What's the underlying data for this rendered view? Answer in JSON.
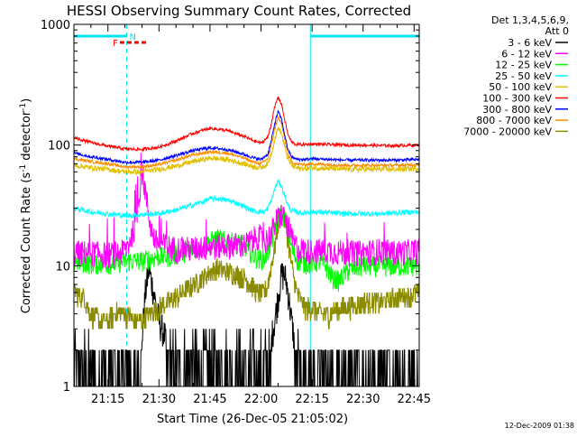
{
  "chart_data": {
    "type": "line",
    "title": "HESSI Observing Summary Count Rates, Corrected",
    "ylabel_prefix": "Corrected Count Rate (s",
    "ylabel_sup1": "-1",
    "ylabel_middle": " detector",
    "ylabel_sup2": "-1",
    "ylabel_suffix": ")",
    "xlabel": "Start Time (26-Dec-05 21:05:02)",
    "yscale": "log",
    "ylim": [
      1,
      1000
    ],
    "xlim_minutes": [
      0,
      101.5
    ],
    "x_tick_labels": [
      "21:15",
      "21:30",
      "21:45",
      "22:00",
      "22:15",
      "22:30",
      "22:45"
    ],
    "x_tick_minutes": [
      10,
      25,
      40,
      55,
      70,
      85,
      100
    ],
    "y_tick_labels": [
      "1",
      "10",
      "100",
      "1000"
    ],
    "legend_header": [
      "Det 1,3,4,5,6,9,",
      "Att 0"
    ],
    "timestamp": "12-Dec-2009 01:38",
    "flags": {
      "night_label": "N",
      "flare_label": "F",
      "night_color": "#00e5ee",
      "flare_color": "#ff0000",
      "night_segments_minutes": [
        [
          0,
          15.5
        ],
        [
          69.5,
          101.5
        ]
      ],
      "flare_segment_minutes": [
        13.5,
        21.5
      ],
      "boundaries_minutes": [
        15.5,
        69.5,
        101.5
      ]
    },
    "series": [
      {
        "name": "3 - 6 keV",
        "color": "#000000",
        "x": [
          0,
          2,
          4,
          5,
          6,
          8,
          10,
          12,
          15,
          16,
          18,
          20,
          21,
          22,
          23,
          24,
          25,
          26,
          27,
          28,
          30,
          32,
          34,
          36,
          38,
          40,
          42,
          44,
          46,
          48,
          50,
          52,
          54,
          55,
          56,
          57,
          58,
          59,
          60,
          61,
          62,
          63,
          64,
          65,
          66,
          67,
          68,
          69,
          70,
          72,
          75,
          80,
          85,
          90,
          95,
          101
        ],
        "y": [
          1.7,
          1.5,
          1.4,
          1.5,
          1.2,
          1,
          1,
          1,
          1,
          1,
          1,
          2.5,
          6,
          9.5,
          7,
          5,
          3.5,
          3,
          2.5,
          2,
          1.8,
          1.4,
          1.2,
          1.3,
          1.5,
          1.3,
          1.6,
          1.4,
          1.5,
          1.3,
          1.4,
          1.2,
          1.3,
          1.5,
          1.6,
          1.9,
          2.5,
          3.5,
          5.5,
          8.5,
          8.5,
          6,
          3.5,
          2.2,
          1.3,
          1,
          1,
          1,
          1,
          1,
          1,
          1,
          1,
          1,
          1,
          1
        ]
      },
      {
        "name": "6 - 12 keV",
        "color": "#ff00ff",
        "x": [
          0,
          5,
          10,
          14,
          16,
          18,
          19,
          20,
          21,
          22,
          23,
          24,
          26,
          28,
          30,
          32,
          35,
          40,
          45,
          50,
          52,
          53,
          54,
          55,
          56,
          57,
          58,
          59,
          60,
          61,
          62,
          63,
          64,
          65,
          66,
          68,
          70,
          75,
          80,
          85,
          90,
          95,
          101
        ],
        "y": [
          13,
          13,
          12.5,
          13,
          15,
          22,
          35,
          62,
          42,
          26,
          19,
          16,
          15,
          14.5,
          14,
          14,
          14,
          14.5,
          15,
          15,
          16,
          17,
          18,
          17,
          16,
          17,
          19,
          22,
          25,
          27,
          25,
          21,
          17,
          15,
          14,
          13.5,
          13.5,
          13.5,
          13,
          13,
          13.5,
          13,
          13.5
        ]
      },
      {
        "name": "12 - 25 keV",
        "color": "#00ff00",
        "x": [
          0,
          5,
          10,
          12,
          15,
          18,
          20,
          22,
          25,
          28,
          30,
          32,
          35,
          38,
          40,
          42,
          45,
          48,
          50,
          52,
          54,
          56,
          57,
          58,
          59,
          60,
          61,
          62,
          63,
          64,
          65,
          66,
          68,
          70,
          72,
          74,
          75,
          76,
          78,
          80,
          82,
          85,
          90,
          95,
          101
        ],
        "y": [
          11,
          10.5,
          10.5,
          10.5,
          11,
          11,
          11,
          11.5,
          12,
          12,
          12.5,
          13,
          14,
          15,
          16,
          17,
          16,
          15.5,
          15,
          13,
          11.5,
          11.5,
          13,
          16,
          20,
          25,
          28,
          25,
          19,
          14,
          12,
          11,
          10.5,
          10.5,
          11,
          10,
          9,
          8,
          7.5,
          9,
          9.5,
          10,
          10,
          10,
          10
        ]
      },
      {
        "name": "25 - 50 keV",
        "color": "#00ffff",
        "x": [
          0,
          5,
          10,
          15,
          20,
          25,
          30,
          35,
          38,
          40,
          42,
          45,
          48,
          50,
          52,
          54,
          56,
          57,
          58,
          59,
          60,
          61,
          62,
          63,
          64,
          65,
          66,
          68,
          70,
          75,
          80,
          85,
          90,
          95,
          101
        ],
        "y": [
          30,
          28,
          27,
          26,
          26.5,
          27,
          29,
          32,
          34,
          36,
          36,
          35,
          33,
          31,
          29,
          28,
          28,
          30,
          35,
          43,
          50,
          46,
          38,
          31,
          28.5,
          28,
          27.5,
          27.5,
          28,
          27.5,
          27,
          27,
          27,
          27.5,
          28
        ]
      },
      {
        "name": "50 - 100 keV",
        "color": "#e0c000",
        "x": [
          0,
          5,
          10,
          15,
          20,
          25,
          30,
          35,
          40,
          45,
          50,
          53,
          55,
          57,
          58,
          59,
          60,
          61,
          62,
          63,
          64,
          65,
          66,
          68,
          70,
          75,
          80,
          85,
          90,
          95,
          101
        ],
        "y": [
          68,
          65,
          63,
          60,
          60,
          63,
          67,
          73,
          78,
          76,
          70,
          66,
          65,
          70,
          85,
          110,
          140,
          125,
          95,
          75,
          68,
          65,
          64,
          64,
          65,
          64,
          63,
          63,
          63,
          63,
          64
        ]
      },
      {
        "name": "100 - 300 keV",
        "color": "#ff0000",
        "x": [
          0,
          5,
          10,
          15,
          20,
          25,
          30,
          35,
          40,
          45,
          50,
          53,
          55,
          57,
          58,
          59,
          60,
          61,
          62,
          63,
          64,
          65,
          66,
          68,
          70,
          75,
          80,
          85,
          90,
          95,
          101
        ],
        "y": [
          115,
          105,
          98,
          93,
          92,
          96,
          108,
          125,
          138,
          132,
          118,
          108,
          104,
          116,
          150,
          205,
          250,
          220,
          160,
          120,
          106,
          102,
          101,
          101,
          102,
          101,
          100,
          100,
          99,
          99,
          100
        ]
      },
      {
        "name": "300 - 800 keV",
        "color": "#0000ff",
        "x": [
          0,
          5,
          10,
          15,
          20,
          25,
          30,
          35,
          40,
          45,
          50,
          53,
          55,
          57,
          58,
          59,
          60,
          61,
          62,
          63,
          64,
          65,
          66,
          68,
          70,
          75,
          80,
          85,
          90,
          95,
          101
        ],
        "y": [
          86,
          80,
          76,
          72,
          72,
          75,
          82,
          90,
          95,
          92,
          84,
          78,
          76,
          84,
          108,
          150,
          190,
          165,
          120,
          90,
          80,
          77,
          76,
          76,
          77,
          76,
          75,
          75,
          75,
          75,
          76
        ]
      },
      {
        "name": "800 - 7000 keV",
        "color": "#ff8c00",
        "x": [
          0,
          5,
          10,
          15,
          20,
          25,
          30,
          35,
          40,
          45,
          50,
          53,
          55,
          57,
          58,
          59,
          60,
          61,
          62,
          63,
          64,
          65,
          66,
          68,
          70,
          75,
          80,
          85,
          90,
          95,
          101
        ],
        "y": [
          77,
          73,
          70,
          66,
          66,
          69,
          75,
          83,
          88,
          86,
          78,
          72,
          70,
          77,
          98,
          135,
          170,
          150,
          110,
          82,
          73,
          70,
          69,
          69,
          70,
          69,
          68,
          68,
          68,
          68,
          69
        ]
      },
      {
        "name": "7000 - 20000 keV",
        "color": "#8b8b00",
        "x": [
          0,
          3,
          5,
          8,
          10,
          12,
          15,
          18,
          20,
          22,
          25,
          28,
          30,
          32,
          35,
          38,
          40,
          42,
          45,
          48,
          50,
          52,
          54,
          56,
          57,
          58,
          59,
          60,
          61,
          62,
          63,
          64,
          65,
          66,
          68,
          70,
          72,
          75,
          78,
          80,
          85,
          90,
          95,
          101
        ],
        "y": [
          6,
          5.5,
          4,
          3.5,
          3.5,
          4,
          4,
          3.5,
          3.5,
          4,
          4.5,
          5,
          5.5,
          6,
          7,
          8,
          9,
          9.5,
          9,
          8.5,
          8,
          7,
          6,
          6,
          7,
          10,
          14,
          22,
          28,
          24,
          16,
          10,
          7,
          5.5,
          4.5,
          4.5,
          4,
          4,
          4.5,
          4.5,
          5,
          5,
          5.5,
          6
        ]
      }
    ]
  }
}
